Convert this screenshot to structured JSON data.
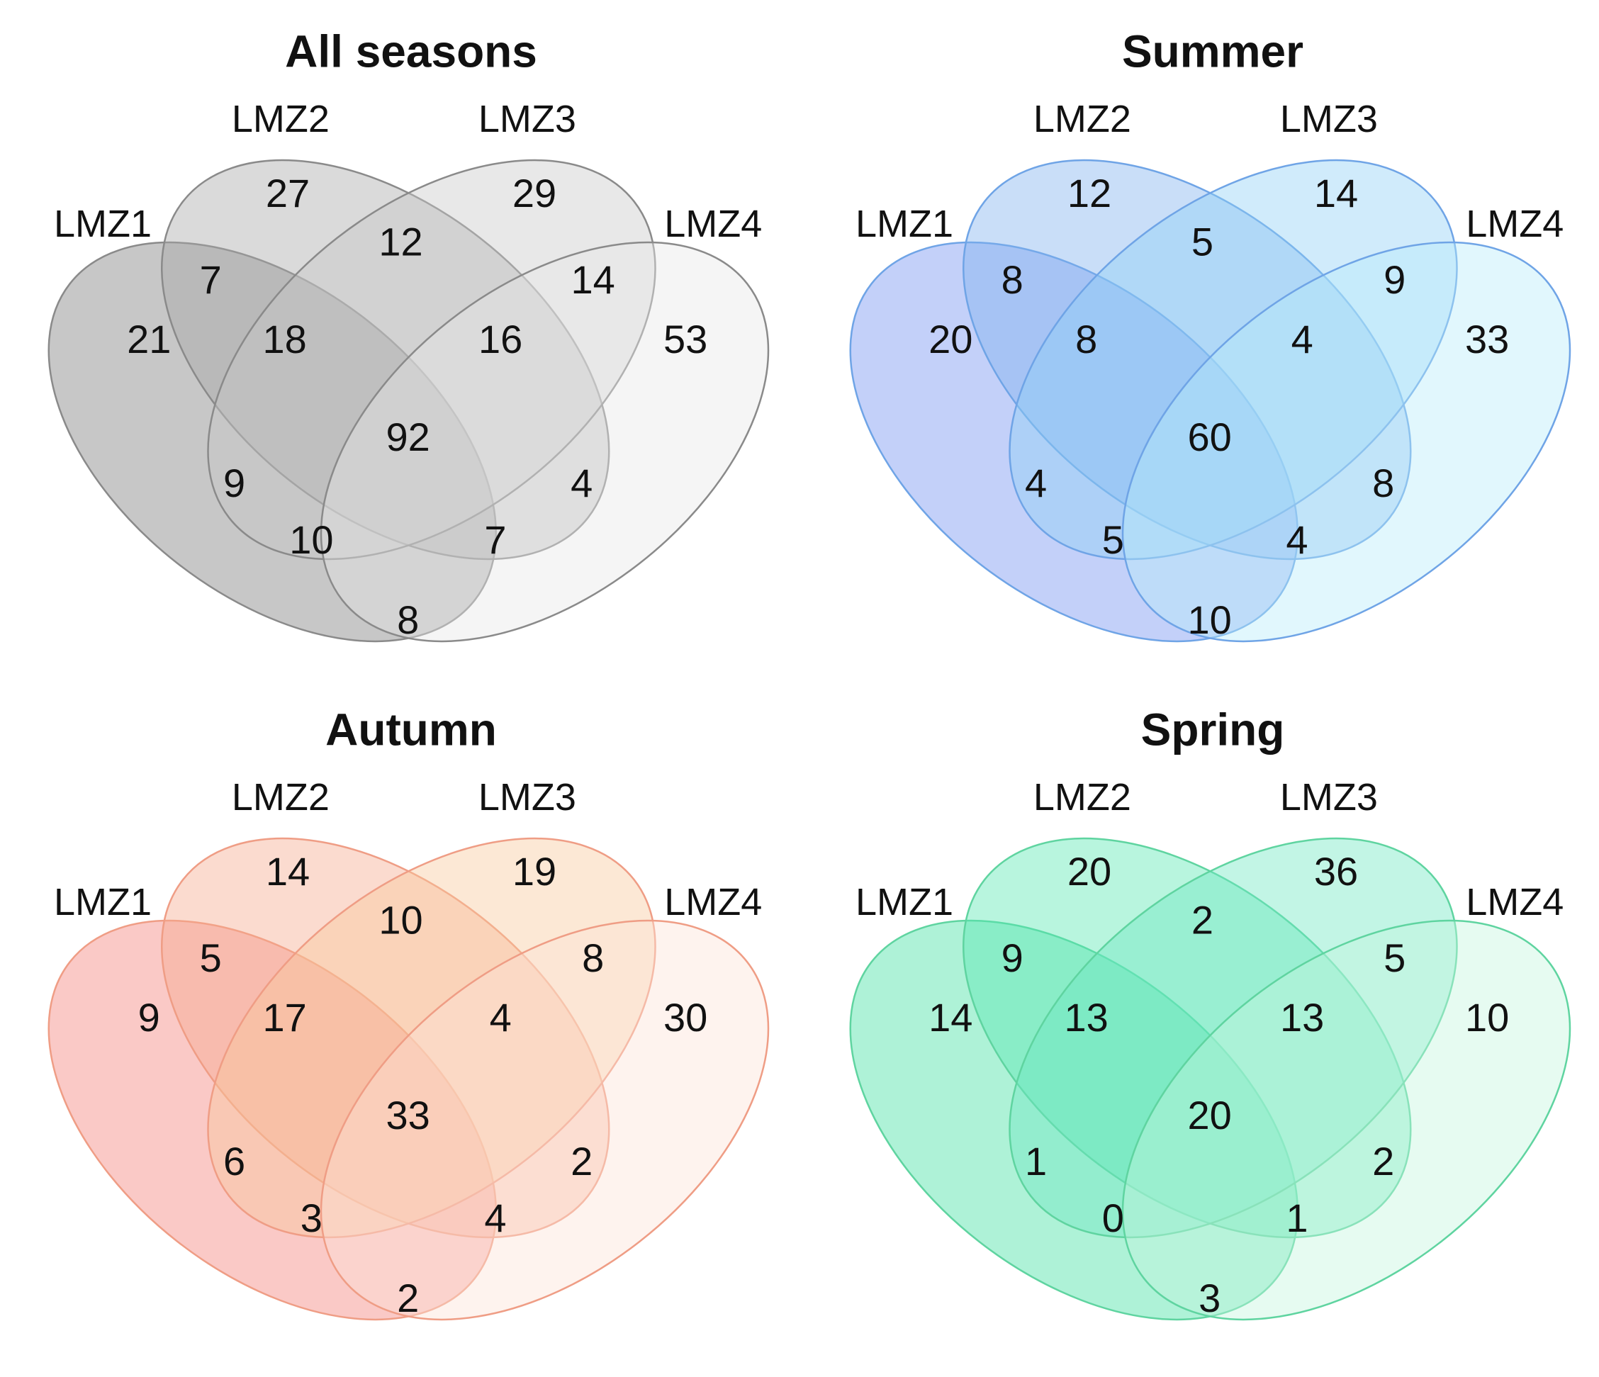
{
  "venns": [
    {
      "title": "All seasons",
      "set_labels": [
        "LMZ1",
        "LMZ2",
        "LMZ3",
        "LMZ4"
      ],
      "colors": {
        "fill": [
          "#7a7a7a",
          "#a8a8a8",
          "#c9c9c9",
          "#e8e8e8"
        ],
        "stroke": "#8a8a8a"
      },
      "regions": {
        "LMZ1_only": 21,
        "LMZ2_only": 27,
        "LMZ3_only": 29,
        "LMZ4_only": 53,
        "LMZ1_LMZ2": 7,
        "LMZ2_LMZ3": 12,
        "LMZ3_LMZ4": 14,
        "LMZ1_LMZ3": 9,
        "LMZ2_LMZ4": 4,
        "LMZ1_LMZ4": 8,
        "LMZ1_LMZ2_LMZ3": 18,
        "LMZ2_LMZ3_LMZ4": 16,
        "LMZ1_LMZ3_LMZ4": 10,
        "LMZ1_LMZ2_LMZ4": 7,
        "all": 92
      }
    },
    {
      "title": "Summer",
      "set_labels": [
        "LMZ1",
        "LMZ2",
        "LMZ3",
        "LMZ4"
      ],
      "colors": {
        "fill": [
          "#6f8ff0",
          "#7fb1ef",
          "#8fd0f5",
          "#b7ecfb"
        ],
        "stroke": "#6fa4e6"
      },
      "regions": {
        "LMZ1_only": 20,
        "LMZ2_only": 12,
        "LMZ3_only": 14,
        "LMZ4_only": 33,
        "LMZ1_LMZ2": 8,
        "LMZ2_LMZ3": 5,
        "LMZ3_LMZ4": 9,
        "LMZ1_LMZ3": 4,
        "LMZ2_LMZ4": 8,
        "LMZ1_LMZ4": 10,
        "LMZ1_LMZ2_LMZ3": 8,
        "LMZ2_LMZ3_LMZ4": 4,
        "LMZ1_LMZ3_LMZ4": 5,
        "LMZ1_LMZ2_LMZ4": 4,
        "all": 60
      }
    },
    {
      "title": "Autumn",
      "set_labels": [
        "LMZ1",
        "LMZ2",
        "LMZ3",
        "LMZ4"
      ],
      "colors": {
        "fill": [
          "#f27f76",
          "#f5a98c",
          "#f9c99c",
          "#fde3d6"
        ],
        "stroke": "#ef9d85"
      },
      "regions": {
        "LMZ1_only": 9,
        "LMZ2_only": 14,
        "LMZ3_only": 19,
        "LMZ4_only": 30,
        "LMZ1_LMZ2": 5,
        "LMZ2_LMZ3": 10,
        "LMZ3_LMZ4": 8,
        "LMZ1_LMZ3": 6,
        "LMZ2_LMZ4": 2,
        "LMZ1_LMZ4": 2,
        "LMZ1_LMZ2_LMZ3": 17,
        "LMZ2_LMZ3_LMZ4": 4,
        "LMZ1_LMZ3_LMZ4": 3,
        "LMZ1_LMZ2_LMZ4": 4,
        "all": 33
      }
    },
    {
      "title": "Spring",
      "set_labels": [
        "LMZ1",
        "LMZ2",
        "LMZ3",
        "LMZ4"
      ],
      "colors": {
        "fill": [
          "#3fe0a0",
          "#55e6b0",
          "#6de8c0",
          "#c3f5dd"
        ],
        "stroke": "#5fd4a0"
      },
      "regions": {
        "LMZ1_only": 14,
        "LMZ2_only": 20,
        "LMZ3_only": 36,
        "LMZ4_only": 10,
        "LMZ1_LMZ2": 9,
        "LMZ2_LMZ3": 2,
        "LMZ3_LMZ4": 5,
        "LMZ1_LMZ3": 1,
        "LMZ2_LMZ4": 2,
        "LMZ1_LMZ4": 3,
        "LMZ1_LMZ2_LMZ3": 13,
        "LMZ2_LMZ3_LMZ4": 13,
        "LMZ1_LMZ3_LMZ4": 0,
        "LMZ1_LMZ2_LMZ4": 1,
        "all": 20
      }
    }
  ]
}
